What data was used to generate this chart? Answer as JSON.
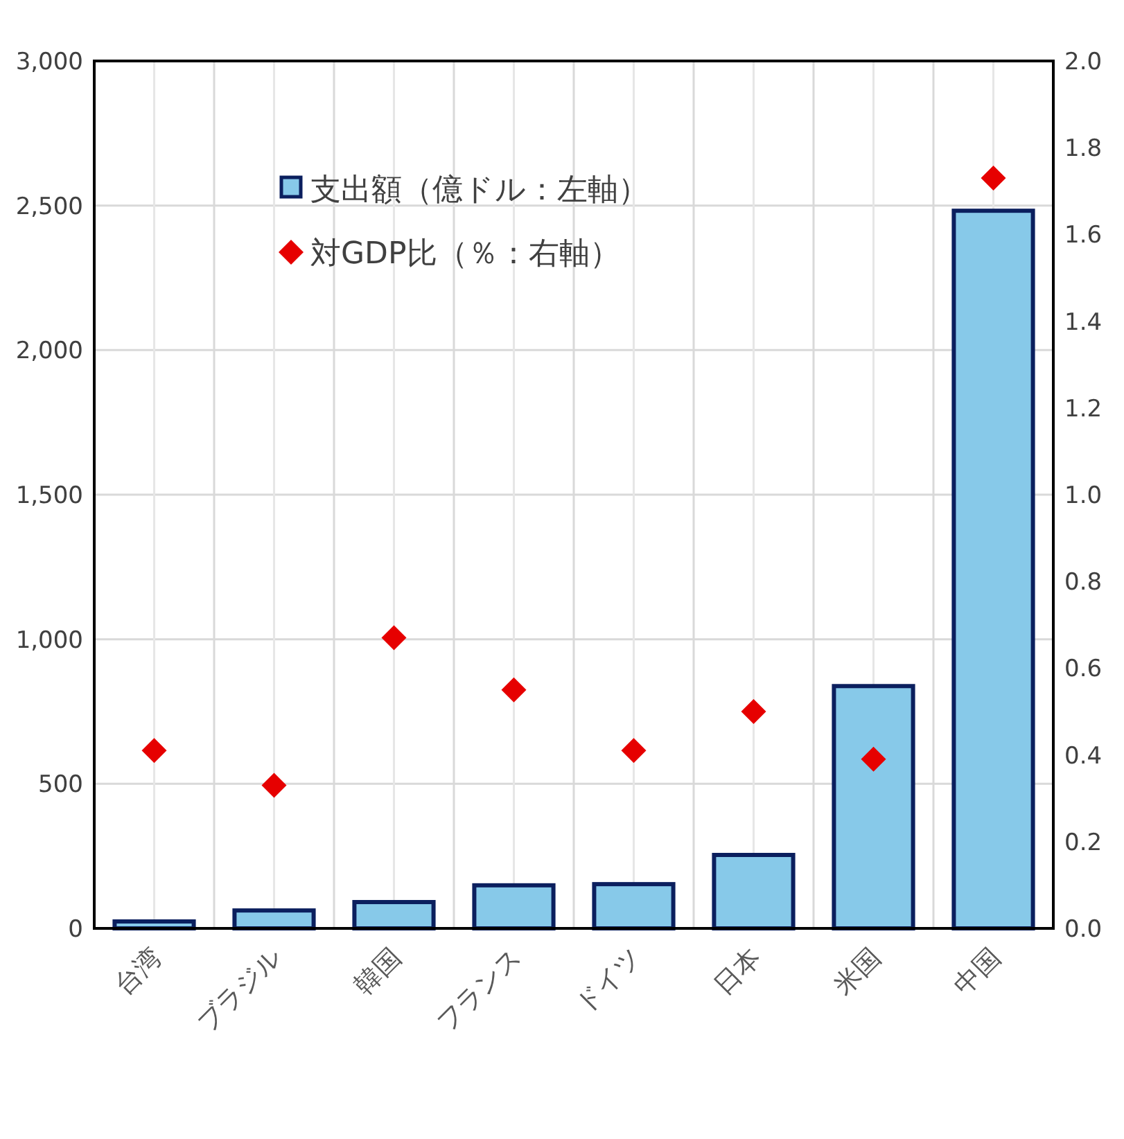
{
  "chart_data": {
    "type": "bar",
    "categories": [
      "台湾",
      "ブラジル",
      "韓国",
      "フランス",
      "ドイツ",
      "日本",
      "米国",
      "中国"
    ],
    "series": [
      {
        "name": "支出額（億ドル：左軸）",
        "color": "#87c9e9",
        "values": [
          24,
          62,
          91,
          149,
          153,
          254,
          838,
          2482
        ]
      },
      {
        "name": "対GDP比（％：右軸）",
        "type": "scatter",
        "axis": "y2",
        "marker": "diamond",
        "color": "#e60000",
        "values": [
          0.41,
          0.33,
          0.67,
          0.55,
          0.41,
          0.5,
          0.39,
          1.73
        ]
      }
    ],
    "ylim": [
      0,
      3000
    ],
    "yticks": [
      {
        "value": 0,
        "label": "0"
      },
      {
        "value": 500,
        "label": "500"
      },
      {
        "value": 1000,
        "label": "1,000"
      },
      {
        "value": 1500,
        "label": "1,500"
      },
      {
        "value": 2000,
        "label": "2,000"
      },
      {
        "value": 2500,
        "label": "2,500"
      },
      {
        "value": 3000,
        "label": "3,000"
      }
    ],
    "y2lim": [
      0,
      2
    ],
    "y2ticks": [
      {
        "value": 0,
        "label": "0.0"
      },
      {
        "value": 0.2,
        "label": "0.2"
      },
      {
        "value": 0.4,
        "label": "0.4"
      },
      {
        "value": 0.6,
        "label": "0.6"
      },
      {
        "value": 0.8,
        "label": "0.8"
      },
      {
        "value": 1,
        "label": "1.0"
      },
      {
        "value": 1.2,
        "label": "1.2"
      },
      {
        "value": 1.4,
        "label": "1.4"
      },
      {
        "value": 1.6,
        "label": "1.6"
      },
      {
        "value": 1.8,
        "label": "1.8"
      },
      {
        "value": 2,
        "label": "2.0"
      }
    ],
    "grid": true,
    "legend": "top left"
  }
}
